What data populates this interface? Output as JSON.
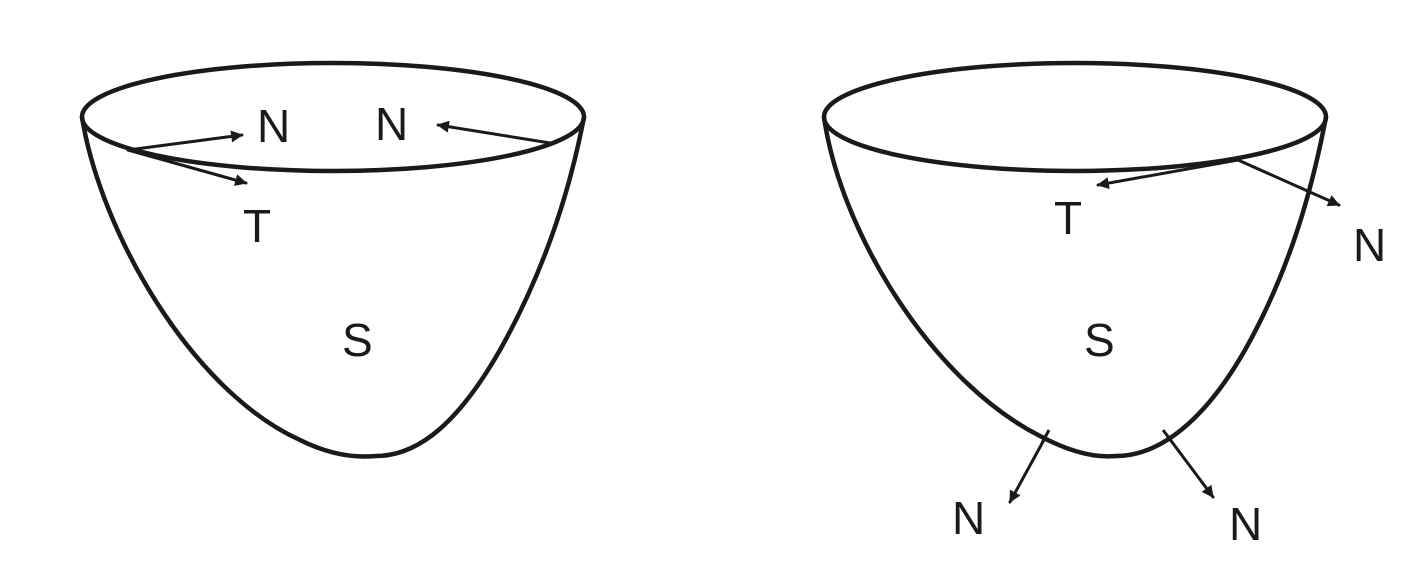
{
  "left_figure": {
    "normal_label_1": "N",
    "normal_label_2": "N",
    "tangent_label": "T",
    "surface_label": "S"
  },
  "right_figure": {
    "tangent_label": "T",
    "normal_label_rim": "N",
    "surface_label": "S",
    "normal_label_bottom_left": "N",
    "normal_label_bottom_right": "N"
  },
  "colors": {
    "stroke": "#1a1a1a",
    "background": "#ffffff"
  }
}
